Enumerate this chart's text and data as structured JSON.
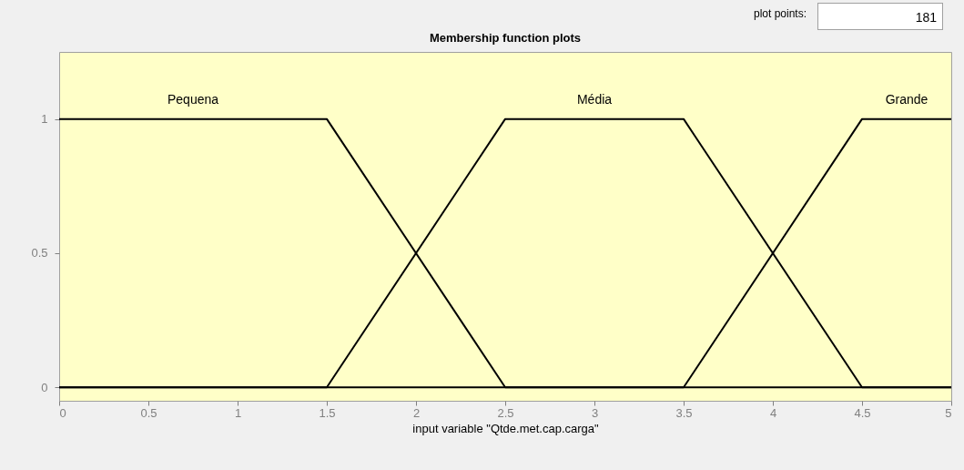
{
  "chart_data": {
    "type": "line",
    "title": "Membership function plots",
    "xlabel": "input variable \"Qtde.met.cap.carga\"",
    "xlim": [
      0,
      5
    ],
    "xticks": [
      0,
      0.5,
      1,
      1.5,
      2,
      2.5,
      3,
      3.5,
      4,
      4.5,
      5
    ],
    "ylim": [
      -0.05,
      1.25
    ],
    "yticks": [
      0,
      0.5,
      1
    ],
    "series": [
      {
        "name": "Pequena",
        "color": "#000000",
        "x": [
          0,
          1.5,
          2.5,
          5
        ],
        "values": [
          1,
          1,
          0,
          0
        ]
      },
      {
        "name": "Média",
        "color": "#000000",
        "x": [
          0,
          1.5,
          2.5,
          3.5,
          4.5,
          5
        ],
        "values": [
          0,
          0,
          1,
          1,
          0,
          0
        ]
      },
      {
        "name": "Grande",
        "color": "#000000",
        "x": [
          0,
          3.5,
          4.5,
          5
        ],
        "values": [
          0,
          0,
          1,
          1
        ]
      }
    ],
    "annotations": [
      "plot points:",
      "181"
    ]
  }
}
